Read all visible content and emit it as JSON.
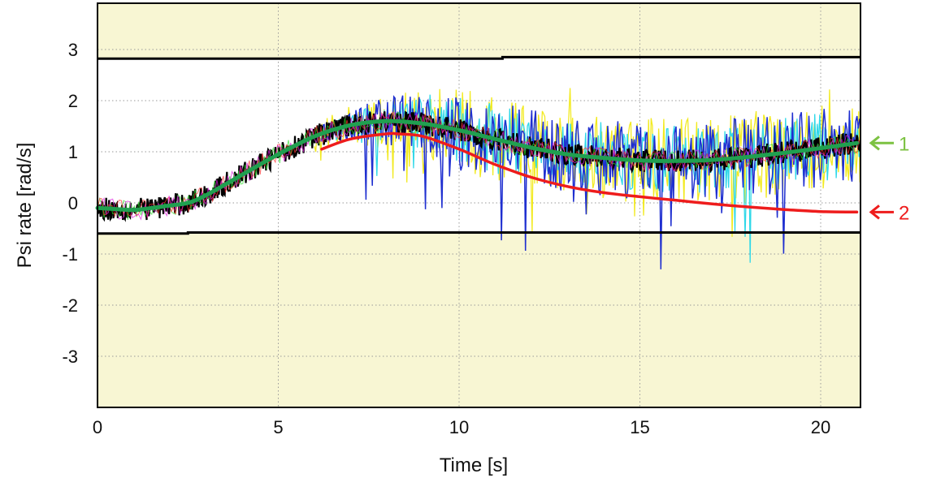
{
  "chart_data": {
    "type": "line",
    "title": "",
    "xlabel": "Time [s]",
    "ylabel": "Psi rate [rad/s]",
    "xlim": [
      0,
      21.1
    ],
    "ylim": [
      -3.9,
      3.9
    ],
    "xticks": [
      "0",
      "5",
      "10",
      "15",
      "20"
    ],
    "yticks": [
      "3",
      "2",
      "1",
      "0",
      "-1",
      "-2",
      "-3"
    ],
    "grid": true,
    "colors": {
      "plot_background": "#f8f6d3",
      "envelope_band": "#ffffff",
      "curve_1": "#20a050",
      "curve_2": "#ee1c1c",
      "annotation_1": "#7cc242",
      "annotation_2": "#ee1c1c",
      "noise_blue": "#1f2fd0",
      "noise_yellow": "#f2ea20",
      "noise_cyan": "#30d8e8",
      "noise_black": "#000000"
    },
    "limits": [
      {
        "x": [
          0,
          2.5,
          2.5,
          11.2,
          11.2,
          21.1
        ],
        "y": [
          2.82,
          2.82,
          2.82,
          2.82,
          2.85,
          2.85
        ]
      },
      {
        "x": [
          0,
          2.5,
          2.5,
          21.1
        ],
        "y": [
          -0.6,
          -0.6,
          -0.58,
          -0.58
        ]
      }
    ],
    "series": [
      {
        "x": [
          6.2,
          7,
          8,
          8.3,
          9,
          10,
          11,
          12,
          13,
          14,
          15,
          16,
          17,
          18,
          19,
          20,
          21
        ],
        "y": [
          1.05,
          1.25,
          1.35,
          1.35,
          1.3,
          1.05,
          0.75,
          0.5,
          0.32,
          0.2,
          0.12,
          0.05,
          -0.02,
          -0.08,
          -0.13,
          -0.17,
          -0.18
        ]
      },
      {
        "x": [
          0,
          0.5,
          1,
          1.5,
          2,
          2.5,
          3,
          4,
          5,
          6,
          7,
          8,
          9,
          10,
          11,
          12,
          13,
          14,
          15,
          16,
          17,
          18,
          19,
          20,
          21
        ],
        "y": [
          -0.1,
          -0.12,
          -0.14,
          -0.1,
          -0.05,
          0.0,
          0.15,
          0.55,
          0.95,
          1.3,
          1.52,
          1.6,
          1.55,
          1.42,
          1.25,
          1.08,
          0.95,
          0.88,
          0.83,
          0.82,
          0.84,
          0.9,
          0.98,
          1.07,
          1.17
        ]
      }
    ],
    "annotations": [
      {
        "label": "1",
        "x": 21.1,
        "y": 1.17,
        "color": "#7cc242"
      },
      {
        "label": "2",
        "x": 21.1,
        "y": -0.18,
        "color": "#ee1c1c"
      }
    ]
  }
}
